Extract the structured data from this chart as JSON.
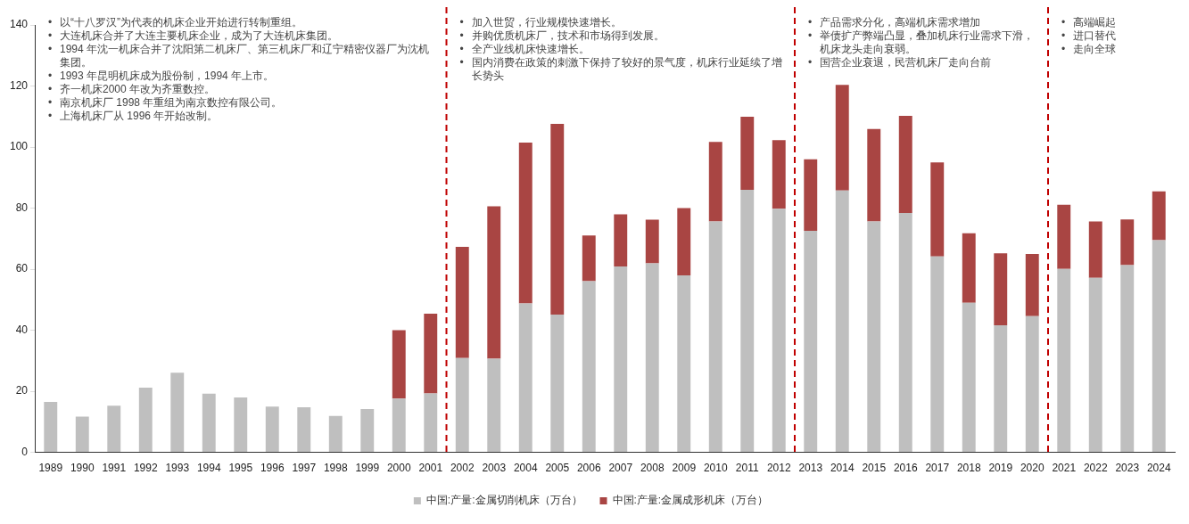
{
  "chart_data": {
    "type": "bar",
    "stacked": true,
    "x": [
      1989,
      1990,
      1991,
      1992,
      1993,
      1994,
      1995,
      1996,
      1997,
      1998,
      1999,
      2000,
      2001,
      2002,
      2003,
      2004,
      2005,
      2006,
      2007,
      2008,
      2009,
      2010,
      2011,
      2012,
      2013,
      2014,
      2015,
      2016,
      2017,
      2018,
      2019,
      2020,
      2021,
      2022,
      2023,
      2024
    ],
    "xlim": [
      1988.5,
      2024.5
    ],
    "xticks": [
      1989,
      1990,
      1991,
      1992,
      1993,
      1994,
      1995,
      1996,
      1997,
      1998,
      1999,
      2000,
      2001,
      2002,
      2003,
      2004,
      2005,
      2006,
      2007,
      2008,
      2009,
      2010,
      2011,
      2012,
      2013,
      2014,
      2015,
      2016,
      2017,
      2018,
      2019,
      2020,
      2021,
      2022,
      2023,
      2024
    ],
    "ylim": [
      0,
      140
    ],
    "yticks": [
      0,
      20,
      40,
      60,
      80,
      100,
      120,
      140
    ],
    "grid": false,
    "legend": "bottom",
    "series": [
      {
        "name": "中国:产量:金属切削机床（万台）",
        "color": "#bfbfbf",
        "values": [
          16.5,
          11.7,
          15.3,
          21.2,
          26.1,
          19.2,
          18.0,
          15.0,
          14.8,
          11.9,
          14.2,
          17.6,
          19.3,
          30.9,
          30.7,
          48.8,
          45.1,
          56.1,
          60.9,
          61.9,
          58.0,
          75.6,
          86.0,
          79.8,
          72.6,
          85.8,
          75.6,
          78.4,
          64.2,
          49.0,
          41.6,
          44.6,
          60.1,
          57.2,
          61.3,
          69.5
        ]
      },
      {
        "name": "中国:产量:金属成形机床（万台）",
        "color": "#a94543",
        "values": [
          null,
          null,
          null,
          null,
          null,
          null,
          null,
          null,
          null,
          null,
          null,
          22.4,
          26.1,
          36.4,
          49.9,
          52.7,
          62.5,
          14.9,
          17.1,
          14.3,
          22.0,
          26.1,
          23.9,
          22.5,
          23.4,
          34.6,
          30.3,
          31.8,
          30.8,
          22.8,
          23.6,
          20.4,
          21.0,
          18.4,
          15.0,
          16.0
        ]
      }
    ],
    "ref_lines": [
      {
        "axis": "x",
        "value": 2001.5,
        "color": "#c00000",
        "line_style": "dashed"
      },
      {
        "axis": "x",
        "value": 2012.5,
        "color": "#c00000",
        "line_style": "dashed"
      },
      {
        "axis": "x",
        "value": 2020.5,
        "color": "#c00000",
        "line_style": "dashed"
      }
    ],
    "annotations": [
      "• 以“十八罗汉”为代表的机床企业开始进行转制重组。• 大连机床合并了大连主要机床企业，成为了大连机床集团。• 1994 年沈一机床合并了沈阳第二机床厂、第三机床厂和辽宁精密仪器厂为沈机集团。• 1993 年昆明机床成为股份制，1994 年上市。• 齐一机床2000 年改为齐重数控。• 南京机床厂 1998 年重组为南京数控有限公司。• 上海机床厂从 1996 年开始改制。",
      "• 加入世贸，行业规模快速增长。• 并购优质机床厂，技术和市场得到发展。• 全产业线机床快速增长。• 国内消费在政策的刺激下保持了较好的景气度，机床行业延续了增长势头",
      "• 产品需求分化，高端机床需求增加• 举债扩产弊端凸显，叠加机床行业需求下滑，机床龙头走向衰弱。• 国营企业衰退，民营机床厂走向台前",
      "• 高端崛起• 进口替代• 走向全球"
    ]
  }
}
